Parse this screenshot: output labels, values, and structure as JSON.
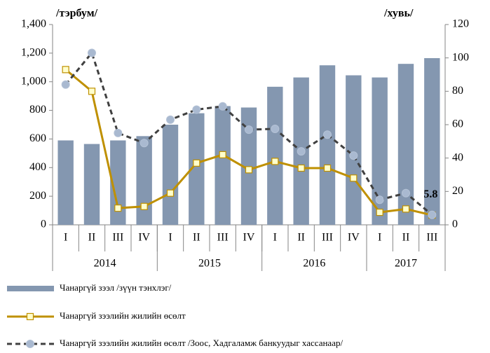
{
  "chart_data": {
    "type": "bar_line",
    "y_axis_title": "/тэрбум/",
    "y2_axis_title": "/хувь/",
    "groups": [
      {
        "name": "2014",
        "categories": [
          "I",
          "II",
          "III",
          "IV"
        ]
      },
      {
        "name": "2015",
        "categories": [
          "I",
          "II",
          "III",
          "IV"
        ]
      },
      {
        "name": "2016",
        "categories": [
          "I",
          "II",
          "III",
          "IV"
        ]
      },
      {
        "name": "2017",
        "categories": [
          "I",
          "II",
          "III"
        ]
      }
    ],
    "ylim": [
      0,
      1400
    ],
    "yticks": [
      0,
      200,
      400,
      600,
      800,
      {
        "value": 1000,
        "label": "1,000"
      },
      {
        "value": 1200,
        "label": "1,200"
      },
      {
        "value": 1400,
        "label": "1,400"
      }
    ],
    "y2lim": [
      0,
      120
    ],
    "y2ticks": [
      0,
      20,
      40,
      60,
      80,
      100,
      120
    ],
    "series": [
      {
        "name": "Чанаргүй зээл /зүүн тэнхлэг/",
        "type": "bar",
        "color": "#8497b0",
        "values": [
          590,
          565,
          590,
          620,
          700,
          780,
          830,
          820,
          965,
          1030,
          1115,
          1045,
          1030,
          1125,
          1165
        ]
      },
      {
        "name": "Чанаргүй зээлийн жилийн өсөлт",
        "type": "line",
        "axis": "y2",
        "color": "#bf9000",
        "marker_color": "#ffffcc",
        "values": [
          93,
          80,
          10,
          11,
          19,
          37,
          42,
          33,
          38,
          34,
          34,
          28,
          7.5,
          9.5,
          5.8
        ],
        "value_labels": [
          null,
          null,
          null,
          null,
          null,
          null,
          null,
          null,
          null,
          null,
          null,
          null,
          null,
          null,
          "5.8"
        ]
      },
      {
        "name": "Чанаргүй зээлийн жилийн өсөлт /Зоос, Хадгаламж банкуудыг хассанаар/",
        "type": "dashed_line",
        "axis": "y2",
        "color": "#404040",
        "marker_color": "#a9b9d0",
        "values": [
          84,
          103,
          55,
          49,
          63,
          69,
          71,
          57,
          57.5,
          44,
          54,
          41.5,
          15,
          19,
          6
        ]
      }
    ]
  }
}
